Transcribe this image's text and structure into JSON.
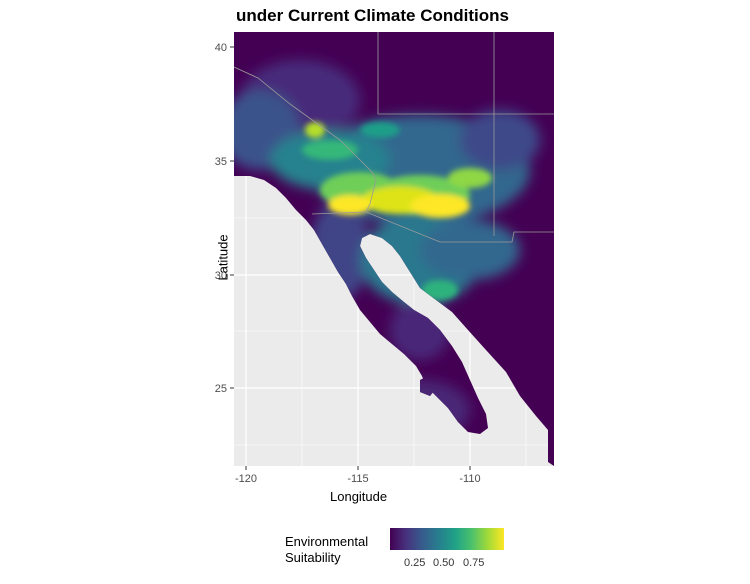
{
  "title": "under Current Climate Conditions",
  "axes": {
    "xlabel": "Longitude",
    "ylabel": "Latitude",
    "x_ticks": [
      "-120",
      "-115",
      "-110"
    ],
    "y_ticks": [
      "40",
      "35",
      "30",
      "25"
    ]
  },
  "legend": {
    "title_line1": "Environmental",
    "title_line2": "Suitability",
    "ticks": [
      "0.25",
      "0.50",
      "0.75"
    ]
  },
  "colors": {
    "panel_bg": "#ebebeb",
    "grid": "#ffffff",
    "low": "#440154",
    "mid": "#21908c",
    "high": "#fde725",
    "border": "#9a9a9a"
  }
}
